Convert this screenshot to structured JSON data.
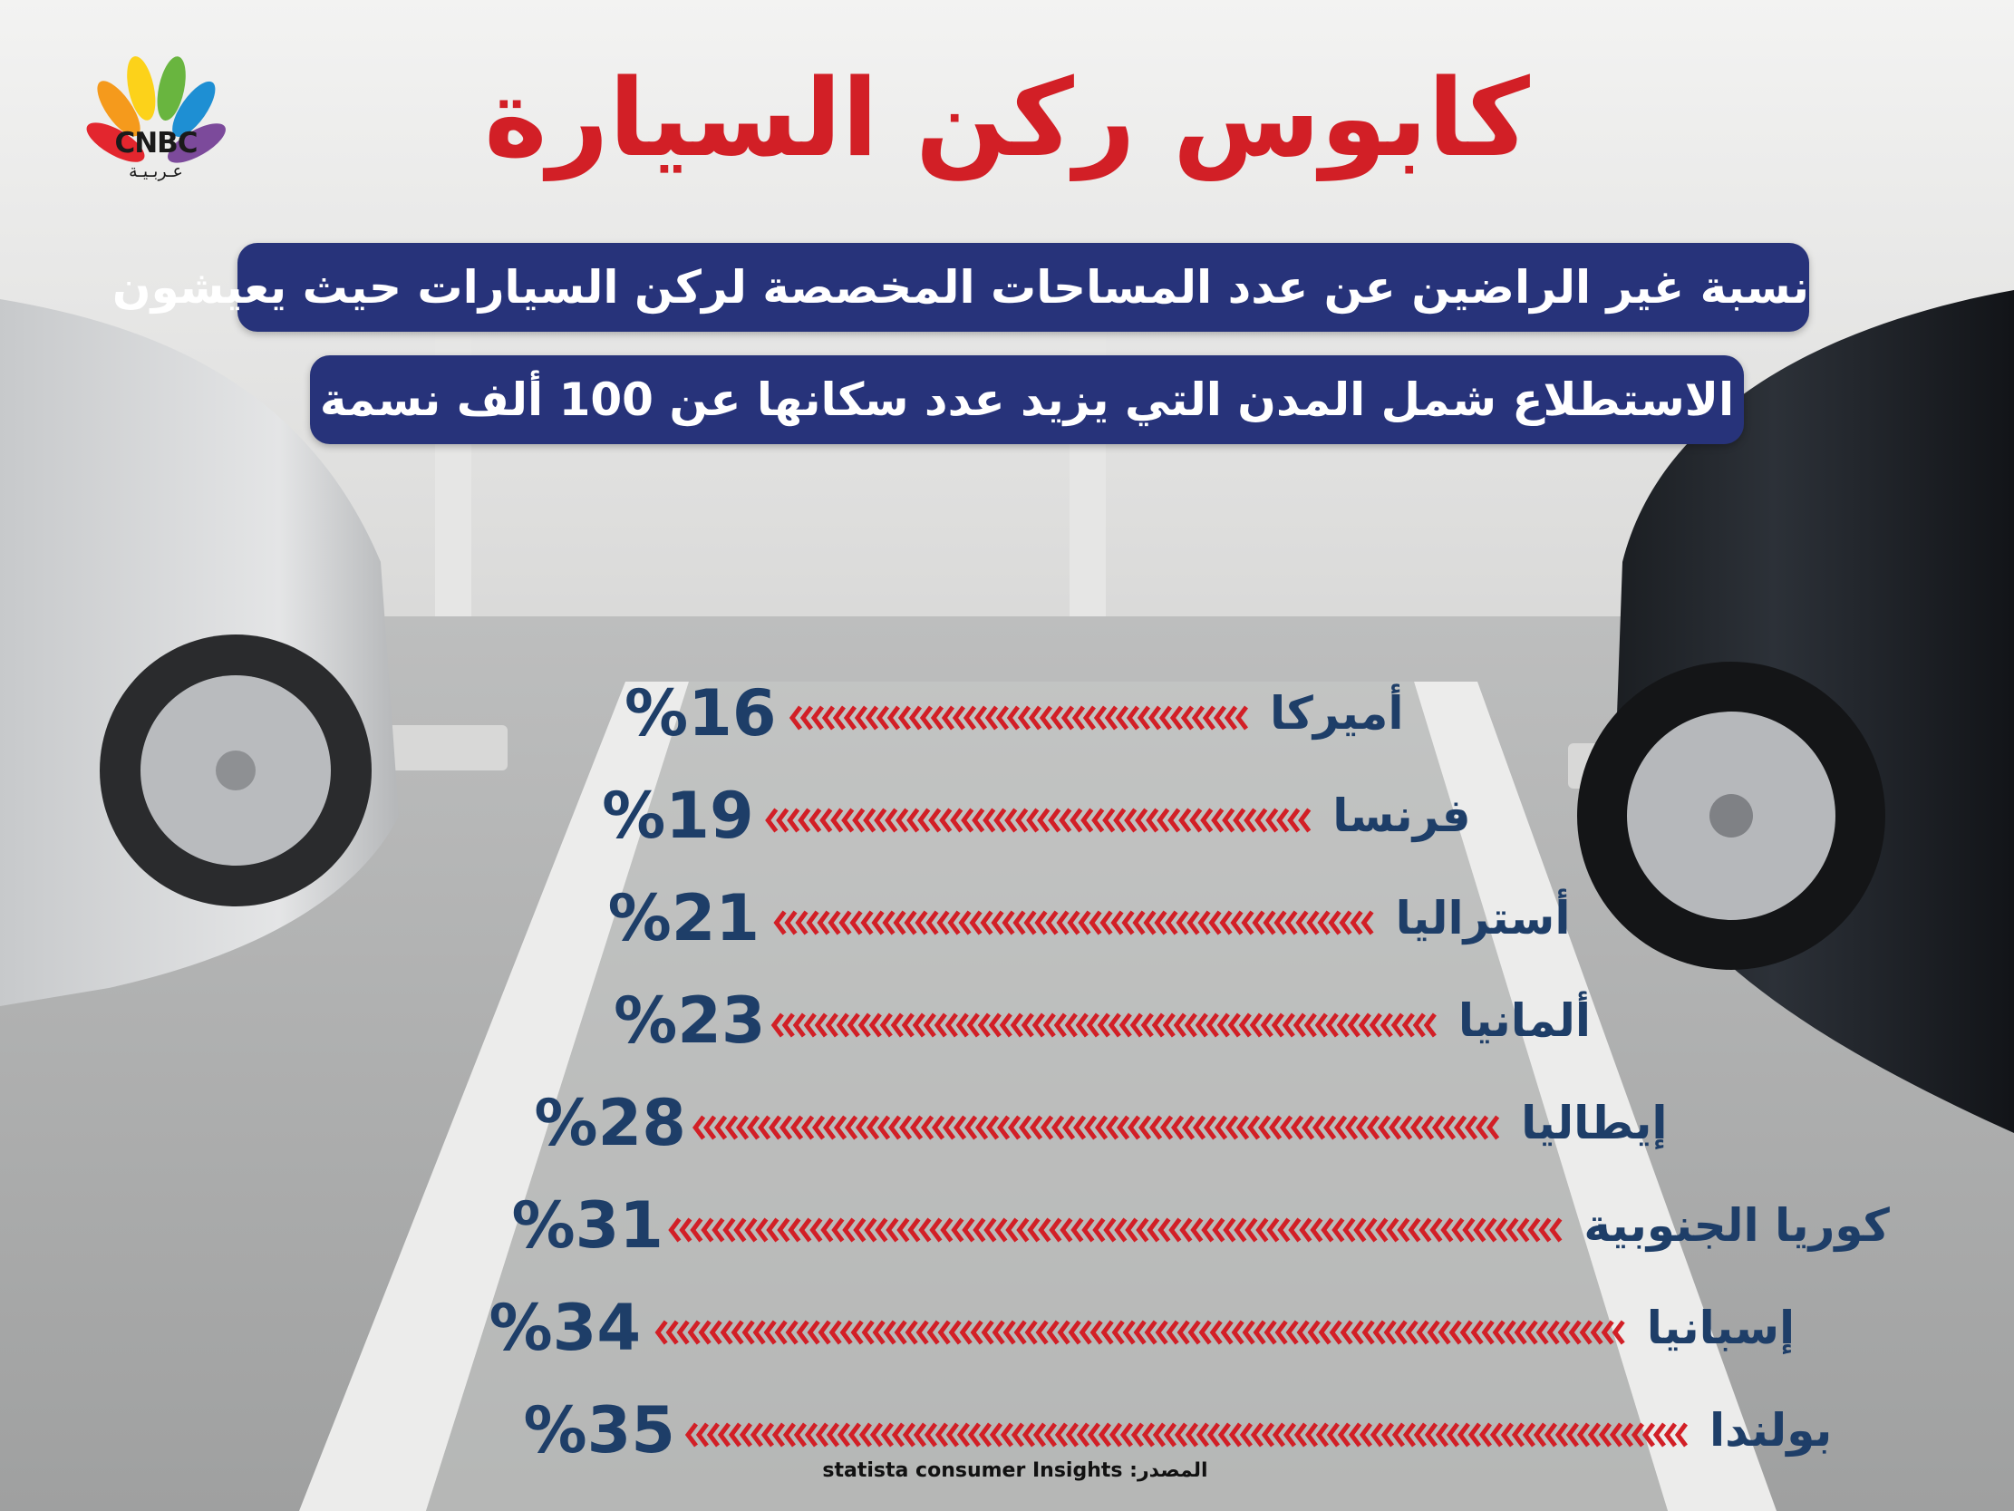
{
  "title": "كابوس ركن السيارة",
  "subtitle": "نسبة غير الراضين عن عدد المساحات المخصصة لركن السيارات حيث يعيشون",
  "note": "الاستطلاع شمل المدن التي يزيد عدد سكانها عن 100 ألف نسمة",
  "logo": {
    "name": "CNBC",
    "sub": "عـربـيـة"
  },
  "source": "statista consumer Insights :المصدر",
  "colors": {
    "title": "#d21f26",
    "pill": "#27337a",
    "labels": "#1e3e68",
    "chevrons": "#d21f26"
  },
  "chart_data": {
    "type": "bar",
    "title": "نسبة غير الراضين عن عدد المساحات المخصصة لركن السيارات حيث يعيشون",
    "categories": [
      "أميركا",
      "فرنسا",
      "أستراليا",
      "ألمانيا",
      "إيطاليا",
      "كوريا الجنوبية",
      "إسبانيا",
      "بولندا"
    ],
    "values": [
      16,
      19,
      21,
      23,
      28,
      31,
      34,
      35
    ],
    "value_labels": [
      "%16",
      "%19",
      "%21",
      "%23",
      "%28",
      "%31",
      "%34",
      "%35"
    ],
    "unit": "%"
  }
}
